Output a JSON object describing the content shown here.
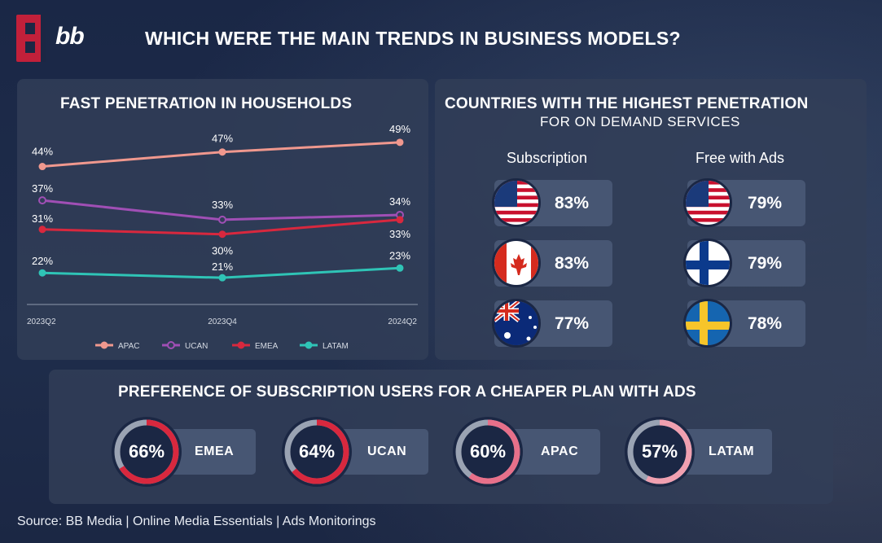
{
  "header": {
    "logo_text": "bb",
    "title": "WHICH WERE THE MAIN TRENDS IN BUSINESS MODELS?"
  },
  "colors": {
    "apac": "#f0988e",
    "ucan": "#a04fb5",
    "emea": "#d8283e",
    "latam": "#2fc4b6",
    "ring_track": "#9aa3b3"
  },
  "chart_data": [
    {
      "type": "line",
      "title": "FAST PENETRATION IN HOUSEHOLDS",
      "categories": [
        "2023Q2",
        "2023Q4",
        "2024Q2"
      ],
      "unit": "%",
      "series": [
        {
          "name": "APAC",
          "values": [
            44,
            47,
            49
          ]
        },
        {
          "name": "UCAN",
          "values": [
            37,
            33,
            34
          ]
        },
        {
          "name": "EMEA",
          "values": [
            31,
            30,
            33
          ]
        },
        {
          "name": "LATAM",
          "values": [
            22,
            21,
            23
          ]
        }
      ],
      "ylim": [
        18,
        52
      ],
      "legend": "bottom",
      "grid": false
    },
    {
      "type": "table",
      "title": "COUNTRIES WITH THE HIGHEST PENETRATION",
      "subtitle": "FOR ON DEMAND SERVICES",
      "columns": [
        "Subscription",
        "Free with Ads"
      ],
      "subscription": [
        {
          "country": "United States",
          "flag": "us-flag-icon",
          "value": "83%"
        },
        {
          "country": "Canada",
          "flag": "canada-flag-icon",
          "value": "83%"
        },
        {
          "country": "Australia",
          "flag": "australia-flag-icon",
          "value": "77%"
        }
      ],
      "free_with_ads": [
        {
          "country": "United States",
          "flag": "us-flag-icon",
          "value": "79%"
        },
        {
          "country": "Finland",
          "flag": "finland-flag-icon",
          "value": "79%"
        },
        {
          "country": "Sweden",
          "flag": "sweden-flag-icon",
          "value": "78%"
        }
      ]
    },
    {
      "type": "pie",
      "title": "PREFERENCE OF SUBSCRIPTION USERS FOR A CHEAPER PLAN WITH ADS",
      "items": [
        {
          "region": "EMEA",
          "value": 66,
          "label": "66%"
        },
        {
          "region": "UCAN",
          "value": 64,
          "label": "64%"
        },
        {
          "region": "APAC",
          "value": 60,
          "label": "60%"
        },
        {
          "region": "LATAM",
          "value": 57,
          "label": "57%"
        }
      ]
    }
  ],
  "footer": {
    "source": "Source: BB Media | Online Media Essentials | Ads Monitorings"
  }
}
